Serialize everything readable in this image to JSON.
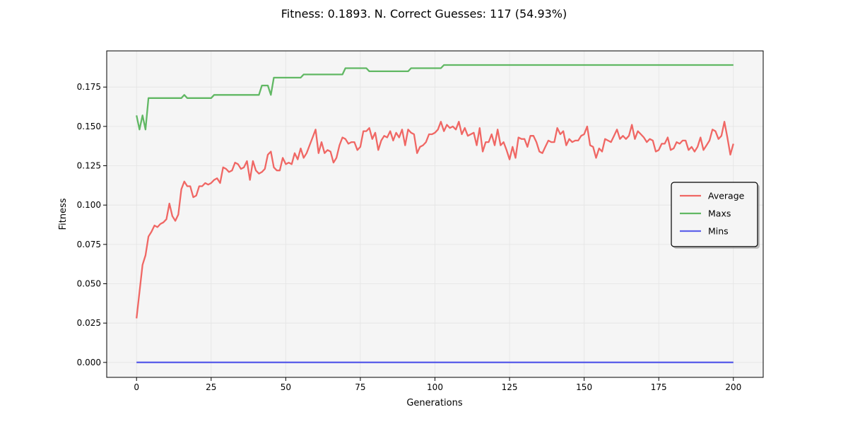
{
  "chart_data": {
    "type": "line",
    "title": "Fitness: 0.1893. N. Correct Guesses: 117 (54.93%)",
    "xlabel": "Generations",
    "ylabel": "Fitness",
    "xlim": [
      -10,
      210
    ],
    "ylim": [
      -0.0095,
      0.198
    ],
    "xticks": [
      0,
      25,
      50,
      75,
      100,
      125,
      150,
      175,
      200
    ],
    "yticks": [
      0.0,
      0.025,
      0.05,
      0.075,
      0.1,
      0.125,
      0.15,
      0.175
    ],
    "xtick_labels": [
      "0",
      "25",
      "50",
      "75",
      "100",
      "125",
      "150",
      "175",
      "200"
    ],
    "ytick_labels": [
      "0.000",
      "0.025",
      "0.050",
      "0.075",
      "0.100",
      "0.125",
      "0.150",
      "0.175"
    ],
    "grid": true,
    "legend_position": "center-right",
    "series": [
      {
        "name": "Average",
        "color": "#ef5350",
        "x": [
          0,
          2,
          3,
          4,
          5,
          6,
          7,
          8,
          9,
          10,
          11,
          12,
          13,
          14,
          15,
          16,
          17,
          18,
          19,
          20,
          21,
          22,
          23,
          24,
          25,
          26,
          27,
          28,
          29,
          30,
          31,
          32,
          33,
          34,
          35,
          36,
          37,
          38,
          39,
          40,
          41,
          42,
          43,
          44,
          45,
          46,
          47,
          48,
          49,
          50,
          51,
          52,
          53,
          54,
          55,
          56,
          57,
          58,
          59,
          60,
          61,
          62,
          63,
          64,
          65,
          66,
          67,
          68,
          69,
          70,
          71,
          72,
          73,
          74,
          75,
          76,
          77,
          78,
          79,
          80,
          81,
          82,
          83,
          84,
          85,
          86,
          87,
          88,
          89,
          90,
          91,
          92,
          93,
          94,
          95,
          96,
          97,
          98,
          99,
          100,
          101,
          102,
          103,
          104,
          105,
          106,
          107,
          108,
          109,
          110,
          111,
          112,
          113,
          114,
          115,
          116,
          117,
          118,
          119,
          120,
          121,
          122,
          123,
          124,
          125,
          126,
          127,
          128,
          129,
          130,
          131,
          132,
          133,
          134,
          135,
          136,
          137,
          138,
          139,
          140,
          141,
          142,
          143,
          144,
          145,
          146,
          147,
          148,
          149,
          150,
          151,
          152,
          153,
          154,
          155,
          156,
          157,
          158,
          159,
          160,
          161,
          162,
          163,
          164,
          165,
          166,
          167,
          168,
          169,
          170,
          171,
          172,
          173,
          174,
          175,
          176,
          177,
          178,
          179,
          180,
          181,
          182,
          183,
          184,
          185,
          186,
          187,
          188,
          189,
          190,
          191,
          192,
          193,
          194,
          195,
          196,
          197,
          198,
          199,
          200
        ],
        "values": [
          0.028,
          0.062,
          0.068,
          0.08,
          0.083,
          0.087,
          0.086,
          0.088,
          0.089,
          0.091,
          0.101,
          0.093,
          0.09,
          0.094,
          0.11,
          0.115,
          0.112,
          0.112,
          0.105,
          0.106,
          0.112,
          0.112,
          0.114,
          0.113,
          0.114,
          0.116,
          0.117,
          0.114,
          0.124,
          0.123,
          0.121,
          0.122,
          0.127,
          0.126,
          0.123,
          0.124,
          0.128,
          0.116,
          0.128,
          0.122,
          0.12,
          0.121,
          0.123,
          0.132,
          0.134,
          0.124,
          0.122,
          0.122,
          0.13,
          0.126,
          0.127,
          0.126,
          0.133,
          0.129,
          0.136,
          0.13,
          0.133,
          0.138,
          0.143,
          0.148,
          0.133,
          0.14,
          0.133,
          0.135,
          0.134,
          0.127,
          0.13,
          0.138,
          0.143,
          0.142,
          0.139,
          0.14,
          0.14,
          0.135,
          0.137,
          0.147,
          0.147,
          0.149,
          0.142,
          0.146,
          0.135,
          0.141,
          0.144,
          0.143,
          0.147,
          0.141,
          0.146,
          0.143,
          0.148,
          0.138,
          0.148,
          0.146,
          0.145,
          0.133,
          0.137,
          0.138,
          0.14,
          0.145,
          0.145,
          0.146,
          0.148,
          0.153,
          0.147,
          0.151,
          0.149,
          0.15,
          0.148,
          0.153,
          0.145,
          0.149,
          0.144,
          0.145,
          0.146,
          0.138,
          0.149,
          0.134,
          0.14,
          0.14,
          0.145,
          0.138,
          0.148,
          0.138,
          0.14,
          0.135,
          0.129,
          0.137,
          0.13,
          0.143,
          0.142,
          0.142,
          0.137,
          0.144,
          0.144,
          0.14,
          0.134,
          0.133,
          0.137,
          0.141,
          0.14,
          0.14,
          0.149,
          0.145,
          0.147,
          0.138,
          0.142,
          0.14,
          0.141,
          0.141,
          0.144,
          0.145,
          0.15,
          0.138,
          0.137,
          0.13,
          0.136,
          0.134,
          0.142,
          0.141,
          0.14,
          0.144,
          0.148,
          0.142,
          0.144,
          0.142,
          0.144,
          0.151,
          0.142,
          0.147,
          0.145,
          0.143,
          0.14,
          0.142,
          0.141,
          0.134,
          0.135,
          0.139,
          0.139,
          0.143,
          0.135,
          0.136,
          0.14,
          0.139,
          0.141,
          0.141,
          0.135,
          0.137,
          0.134,
          0.137,
          0.143,
          0.135,
          0.138,
          0.141,
          0.148,
          0.147,
          0.142,
          0.144,
          0.153,
          0.143,
          0.132,
          0.139
        ]
      },
      {
        "name": "Maxs",
        "color": "#4caf50",
        "x": [
          0,
          1,
          2,
          3,
          4,
          15,
          16,
          17,
          25,
          26,
          41,
          42,
          44,
          45,
          46,
          55,
          56,
          69,
          70,
          77,
          78,
          91,
          92,
          102,
          103,
          200
        ],
        "values": [
          0.157,
          0.148,
          0.157,
          0.148,
          0.168,
          0.168,
          0.17,
          0.168,
          0.168,
          0.17,
          0.17,
          0.176,
          0.176,
          0.17,
          0.181,
          0.181,
          0.183,
          0.183,
          0.187,
          0.187,
          0.185,
          0.185,
          0.187,
          0.187,
          0.189,
          0.189
        ]
      },
      {
        "name": "Mins",
        "color": "#4a4ee8",
        "x": [
          0,
          200
        ],
        "values": [
          0.0,
          0.0
        ]
      }
    ]
  }
}
